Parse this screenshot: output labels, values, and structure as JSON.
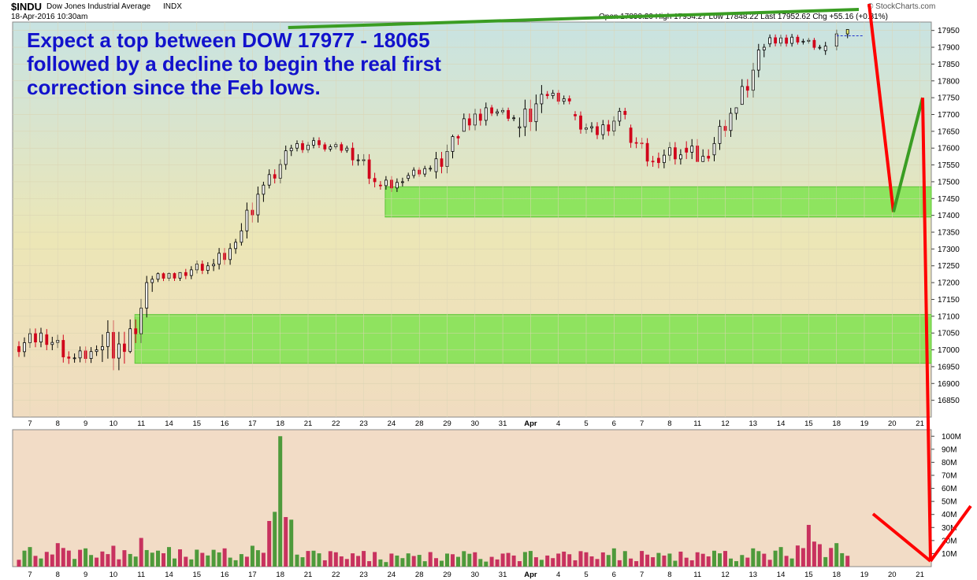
{
  "header": {
    "symbol": "$INDU",
    "name": "Dow Jones Industrial Average",
    "exchange": "INDX",
    "datetime": "18-Apr-2016 10:30am",
    "ohlc": "Open 17890.20  High 17954.27  Low 17848.22  Last 17952.62  Chg +55.16 (+0.31%)",
    "logo": "© StockCharts.com"
  },
  "annotation": "Expect a top between DOW 17977 - 18065 followed by a decline to begin the real first correction since the Feb lows.",
  "colors": {
    "up_candle": "#000000",
    "down_candle": "#d0021b",
    "support_zone": "#7ee34f",
    "forecast_down": "#ff0000",
    "forecast_up": "#3a9d23",
    "annotation_text": "#1212cc",
    "last_candle": "#f5f574"
  },
  "chart_data": {
    "type": "candlestick",
    "x_tick_labels": [
      "7",
      "8",
      "9",
      "10",
      "11",
      "14",
      "15",
      "16",
      "17",
      "18",
      "21",
      "22",
      "23",
      "24",
      "28",
      "29",
      "30",
      "31",
      "Apr",
      "4",
      "5",
      "6",
      "7",
      "8",
      "11",
      "12",
      "13",
      "14",
      "15",
      "18",
      "19",
      "20",
      "21"
    ],
    "y_ticks": [
      16850,
      16900,
      16950,
      17000,
      17050,
      17100,
      17150,
      17200,
      17250,
      17300,
      17350,
      17400,
      17450,
      17500,
      17550,
      17600,
      17650,
      17700,
      17750,
      17800,
      17850,
      17900,
      17950
    ],
    "ylim": [
      16800,
      17975
    ],
    "volume_ticks": [
      "10M",
      "20M",
      "30M",
      "40M",
      "50M",
      "60M",
      "70M",
      "80M",
      "90M",
      "100M"
    ],
    "volume_ylim": [
      0,
      105
    ],
    "last_close": 17952.62,
    "forecast_scale": 0.0,
    "support_zones": [
      {
        "from": 16960,
        "to": 17105,
        "start_x": "11"
      },
      {
        "from": 17395,
        "to": 17485,
        "start_x": "24"
      }
    ],
    "daily_ohlc": [
      {
        "date": "7",
        "open": 17010,
        "high": 17080,
        "low": 16950,
        "close": 17050
      },
      {
        "date": "8",
        "open": 17045,
        "high": 17070,
        "low": 16930,
        "close": 16975
      },
      {
        "date": "9",
        "open": 16975,
        "high": 17070,
        "low": 16960,
        "close": 17000
      },
      {
        "date": "10",
        "open": 17000,
        "high": 17120,
        "low": 16820,
        "close": 16995
      },
      {
        "date": "11",
        "open": 16995,
        "high": 17220,
        "low": 16990,
        "close": 17210
      },
      {
        "date": "14",
        "open": 17210,
        "high": 17230,
        "low": 17160,
        "close": 17230
      },
      {
        "date": "15",
        "open": 17230,
        "high": 17270,
        "low": 17180,
        "close": 17250
      },
      {
        "date": "16",
        "open": 17250,
        "high": 17330,
        "low": 17200,
        "close": 17320
      },
      {
        "date": "17",
        "open": 17320,
        "high": 17500,
        "low": 17310,
        "close": 17490
      },
      {
        "date": "18",
        "open": 17490,
        "high": 17610,
        "low": 17480,
        "close": 17600
      },
      {
        "date": "21",
        "open": 17600,
        "high": 17640,
        "low": 17560,
        "close": 17610
      },
      {
        "date": "22",
        "open": 17610,
        "high": 17640,
        "low": 17580,
        "close": 17600
      },
      {
        "date": "23",
        "open": 17600,
        "high": 17620,
        "low": 17480,
        "close": 17500
      },
      {
        "date": "24",
        "open": 17490,
        "high": 17520,
        "low": 17420,
        "close": 17500
      },
      {
        "date": "28",
        "open": 17510,
        "high": 17560,
        "low": 17490,
        "close": 17540
      },
      {
        "date": "29",
        "open": 17530,
        "high": 17640,
        "low": 17470,
        "close": 17630
      },
      {
        "date": "30",
        "open": 17650,
        "high": 17780,
        "low": 17650,
        "close": 17720
      },
      {
        "date": "31",
        "open": 17720,
        "high": 17740,
        "low": 17670,
        "close": 17690
      },
      {
        "date": "Apr 1",
        "open": 17660,
        "high": 17790,
        "low": 17560,
        "close": 17760
      },
      {
        "date": "4",
        "open": 17760,
        "high": 17810,
        "low": 17730,
        "close": 17740
      },
      {
        "date": "5",
        "open": 17700,
        "high": 17710,
        "low": 17600,
        "close": 17640
      },
      {
        "date": "6",
        "open": 17640,
        "high": 17720,
        "low": 17600,
        "close": 17700
      },
      {
        "date": "7",
        "open": 17660,
        "high": 17670,
        "low": 17540,
        "close": 17560
      },
      {
        "date": "8",
        "open": 17570,
        "high": 17680,
        "low": 17540,
        "close": 17580
      },
      {
        "date": "11",
        "open": 17600,
        "high": 17730,
        "low": 17560,
        "close": 17570
      },
      {
        "date": "12",
        "open": 17580,
        "high": 17720,
        "low": 17560,
        "close": 17720
      },
      {
        "date": "13",
        "open": 17730,
        "high": 17910,
        "low": 17730,
        "close": 17900
      },
      {
        "date": "14",
        "open": 17910,
        "high": 17950,
        "low": 17870,
        "close": 17930
      },
      {
        "date": "15",
        "open": 17930,
        "high": 17940,
        "low": 17880,
        "close": 17900
      },
      {
        "date": "18",
        "open": 17890,
        "high": 17954,
        "low": 17848,
        "close": 17953
      }
    ],
    "daily_volume_m": [
      15,
      18,
      14,
      16,
      22,
      15,
      13,
      14,
      16,
      100,
      12,
      11,
      12,
      10,
      9,
      10,
      11,
      10,
      12,
      10,
      11,
      14,
      12,
      10,
      11,
      12,
      14,
      15,
      32,
      18
    ],
    "forecast_path": [
      {
        "x": "18",
        "y": 17920
      },
      {
        "x": "19",
        "y": 17990
      },
      {
        "x": "20",
        "y": 17410
      },
      {
        "x": "21",
        "y": 17750
      }
    ]
  }
}
